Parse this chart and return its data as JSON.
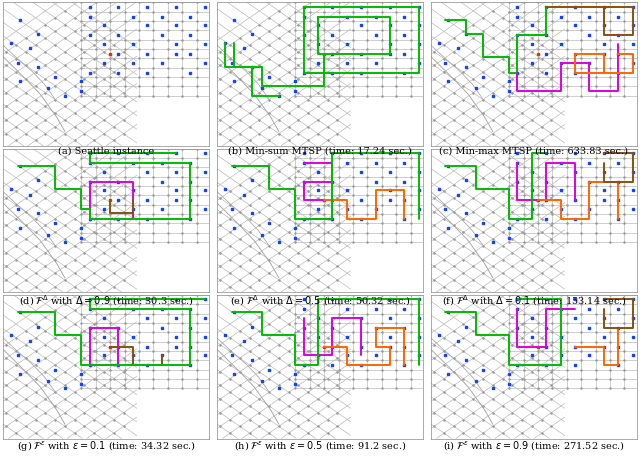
{
  "panels": [
    {
      "label": "(a) Seattle instance",
      "row": 0,
      "col": 0
    },
    {
      "label": "(b) Min-sum MTSP (time: 17.24 sec.)",
      "row": 0,
      "col": 1
    },
    {
      "label": "(c) Min-max MTSP (time: 633.83 sec.)",
      "row": 0,
      "col": 2
    },
    {
      "label": "(d) $\\mathcal{F}^{\\Delta}$ with $\\Delta = 0.9$ (time: 30.3 sec.)",
      "row": 1,
      "col": 0
    },
    {
      "label": "(e) $\\mathcal{F}^{\\Delta}$ with $\\Delta = 0.5$ (time: 50.32 sec.)",
      "row": 1,
      "col": 1
    },
    {
      "label": "(f) $\\mathcal{F}^{\\Delta}$ with $\\Delta = 0.1$ (time: 153.14 sec.)",
      "row": 1,
      "col": 2
    },
    {
      "label": "(g) $\\mathcal{F}^{\\varepsilon}$ with $\\varepsilon = 0.1$ (time: 34.32 sec.)",
      "row": 2,
      "col": 0
    },
    {
      "label": "(h) $\\mathcal{F}^{\\varepsilon}$ with $\\varepsilon = 0.5$ (time: 91.2 sec.)",
      "row": 2,
      "col": 1
    },
    {
      "label": "(i) $\\mathcal{F}^{\\varepsilon}$ with $\\varepsilon = 0.9$ (time: 271.52 sec.)",
      "row": 2,
      "col": 2
    }
  ],
  "grid_color": "#bbbbbb",
  "node_dot_color": "#aaaaaa",
  "bg_color": "#ffffff",
  "caption_fontsize": 7.0,
  "node_color_blue": "#1144ff",
  "node_color_red": "#ff2200",
  "node_color_purple": "#8800cc",
  "route_lw": 1.4,
  "colors": {
    "green": "#00bb00",
    "magenta": "#dd00dd",
    "orange": "#ff6600",
    "brown": "#8B5010"
  }
}
